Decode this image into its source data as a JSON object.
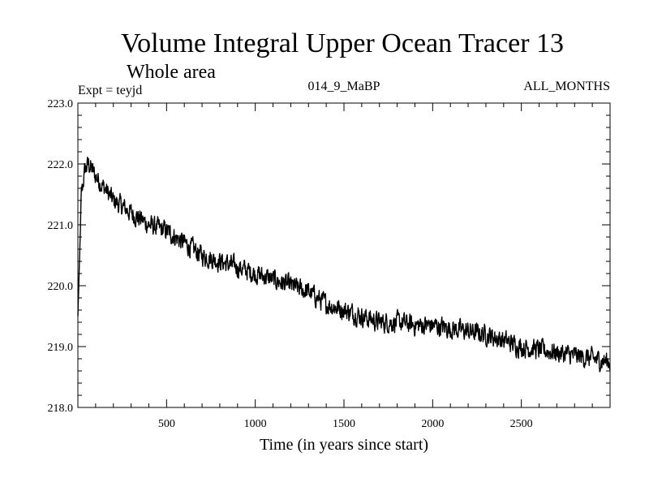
{
  "chart_data": {
    "type": "line",
    "title": "Volume Integral Upper Ocean Tracer 13",
    "subtitle": "Whole area",
    "expt_label": "Expt = teyjd",
    "run_label": "014_9_MaBP",
    "period_label": "ALL_MONTHS",
    "xlabel": "Time (in years since start)",
    "ylabel": "",
    "xlim": [
      0,
      3000
    ],
    "ylim": [
      218.0,
      223.0
    ],
    "x_ticks": [
      500,
      1000,
      1500,
      2000,
      2500
    ],
    "x_tick_labels": [
      "500",
      "1000",
      "1500",
      "2000",
      "2500"
    ],
    "y_ticks": [
      218.0,
      219.0,
      220.0,
      221.0,
      222.0,
      223.0
    ],
    "y_tick_labels": [
      "218.0",
      "219.0",
      "220.0",
      "221.0",
      "222.0",
      "223.0"
    ],
    "grid": false,
    "series": [
      {
        "name": "Tracer 13",
        "color": "#000000",
        "noise_amplitude": 0.25,
        "x": [
          0,
          20,
          40,
          60,
          100,
          150,
          200,
          300,
          400,
          500,
          600,
          700,
          800,
          900,
          1000,
          1100,
          1200,
          1300,
          1400,
          1500,
          1600,
          1700,
          1800,
          1900,
          2000,
          2100,
          2200,
          2300,
          2400,
          2500,
          2600,
          2700,
          2800,
          2900,
          3000
        ],
        "values": [
          219.5,
          221.5,
          221.9,
          222.0,
          221.8,
          221.6,
          221.4,
          221.2,
          221.0,
          220.9,
          220.7,
          220.5,
          220.4,
          220.3,
          220.2,
          220.1,
          220.0,
          219.9,
          219.7,
          219.6,
          219.5,
          219.4,
          219.4,
          219.35,
          219.35,
          219.3,
          219.25,
          219.2,
          219.1,
          219.0,
          218.95,
          218.9,
          218.85,
          218.8,
          218.75
        ]
      }
    ]
  }
}
